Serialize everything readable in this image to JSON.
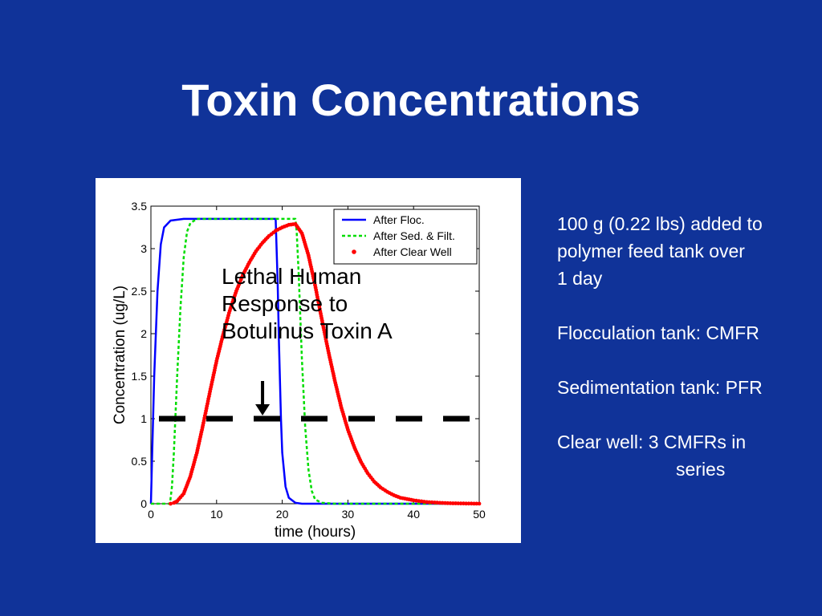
{
  "slide": {
    "title": "Toxin Concentrations",
    "background": "#103399",
    "notes": [
      "100 g (0.22 lbs) added to",
      "polymer feed tank over",
      "1 day",
      "Flocculation tank: CMFR",
      "Sedimentation tank: PFR",
      "Clear well: 3 CMFRs in",
      "series"
    ]
  },
  "chart_data": {
    "type": "line",
    "title": "",
    "xlabel": "time (hours)",
    "ylabel": "Concentration (ug/L)",
    "xlim": [
      0,
      50
    ],
    "ylim": [
      0,
      3.5
    ],
    "x_ticks": [
      "0",
      "10",
      "20",
      "30",
      "40",
      "50"
    ],
    "y_ticks": [
      "0",
      "0.5",
      "1",
      "1.5",
      "2",
      "2.5",
      "3",
      "3.5"
    ],
    "grid": false,
    "legend_position": "top-right",
    "series": [
      {
        "name": "After Floc.",
        "style": "solid",
        "color": "#0000ff",
        "x": [
          0,
          0.2,
          0.5,
          1,
          1.5,
          2,
          3,
          5,
          10,
          19,
          19.3,
          19.5,
          19.8,
          20,
          20.5,
          21,
          22,
          23,
          25,
          30,
          40,
          50
        ],
        "y": [
          0,
          0.6,
          1.5,
          2.5,
          3.05,
          3.25,
          3.33,
          3.35,
          3.35,
          3.35,
          2.6,
          1.9,
          1.0,
          0.6,
          0.2,
          0.07,
          0.01,
          0,
          0,
          0,
          0,
          0
        ]
      },
      {
        "name": "After Sed. & Filt.",
        "style": "dashed",
        "color": "#00dd00",
        "x": [
          0,
          2.9,
          3.2,
          3.5,
          4,
          4.5,
          5,
          5.5,
          6,
          7,
          22,
          22.2,
          22.5,
          23,
          23.5,
          24,
          24.5,
          25,
          26,
          28,
          35,
          50
        ],
        "y": [
          0,
          0,
          0.2,
          0.6,
          1.5,
          2.3,
          2.9,
          3.2,
          3.3,
          3.35,
          3.35,
          3.2,
          2.7,
          1.7,
          0.9,
          0.4,
          0.15,
          0.05,
          0.01,
          0,
          0,
          0
        ]
      },
      {
        "name": "After Clear Well",
        "style": "dots",
        "color": "#ff0000",
        "x": [
          3,
          3.5,
          4,
          5,
          6,
          7,
          8,
          9,
          10,
          11,
          12,
          13,
          14,
          15,
          16,
          17,
          18,
          19,
          20,
          21,
          22,
          23,
          24,
          25,
          26,
          27,
          28,
          29,
          30,
          31,
          32,
          33,
          34,
          35,
          36,
          37,
          38,
          40,
          42,
          44,
          46,
          48,
          50
        ],
        "y": [
          0,
          0.01,
          0.03,
          0.12,
          0.32,
          0.6,
          0.95,
          1.32,
          1.68,
          1.99,
          2.27,
          2.5,
          2.69,
          2.84,
          2.97,
          3.07,
          3.15,
          3.21,
          3.25,
          3.28,
          3.29,
          3.18,
          2.92,
          2.57,
          2.18,
          1.8,
          1.45,
          1.13,
          0.87,
          0.66,
          0.49,
          0.36,
          0.26,
          0.19,
          0.14,
          0.1,
          0.07,
          0.04,
          0.02,
          0.01,
          0.005,
          0.002,
          0.001
        ]
      }
    ],
    "reference_line": {
      "y": 1,
      "style": "dashed",
      "color": "#000000"
    },
    "annotation": {
      "text": "Lethal Human Response to Botulinus Toxin A",
      "arrow_x": 17
    }
  }
}
